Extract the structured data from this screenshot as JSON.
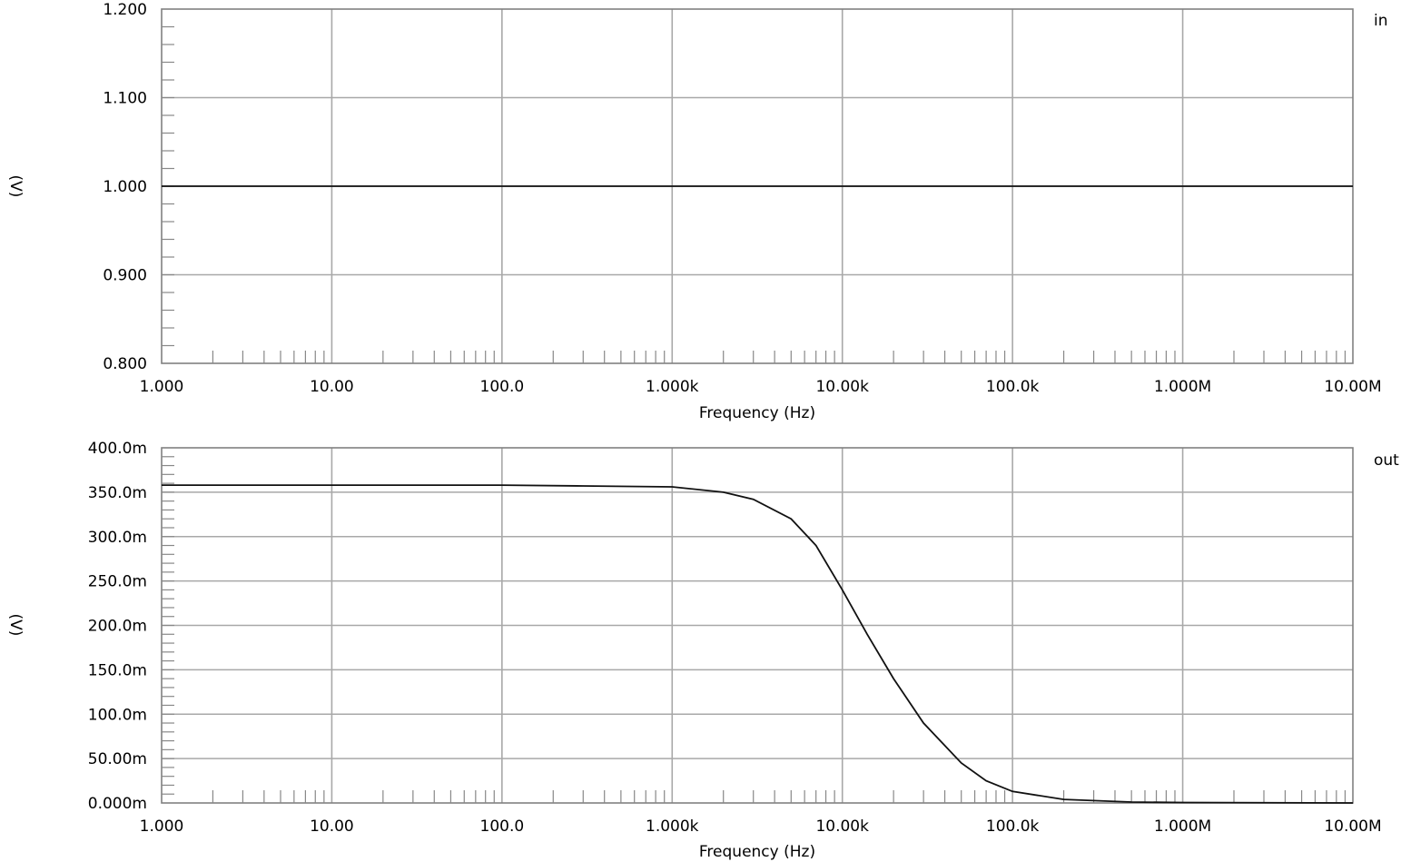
{
  "chart_data": [
    {
      "type": "line",
      "trace_label": "in",
      "xlabel": "Frequency (Hz)",
      "ylabel": "(V)",
      "x_scale": "log",
      "xlim": [
        1,
        10000000
      ],
      "ylim": [
        0.8,
        1.2
      ],
      "x_tick_labels": [
        "1.000",
        "10.00",
        "100.0",
        "1.000k",
        "10.00k",
        "100.0k",
        "1.000M",
        "10.00M"
      ],
      "y_tick_labels": [
        "0.800",
        "0.900",
        "1.000",
        "1.100",
        "1.200"
      ],
      "grid": true,
      "series": [
        {
          "name": "in",
          "x": [
            1,
            10,
            100,
            1000,
            10000,
            100000,
            1000000,
            10000000
          ],
          "y": [
            1.0,
            1.0,
            1.0,
            1.0,
            1.0,
            1.0,
            1.0,
            1.0
          ]
        }
      ]
    },
    {
      "type": "line",
      "trace_label": "out",
      "xlabel": "Frequency (Hz)",
      "ylabel": "(V)",
      "x_scale": "log",
      "xlim": [
        1,
        10000000
      ],
      "ylim": [
        0,
        0.4
      ],
      "x_tick_labels": [
        "1.000",
        "10.00",
        "100.0",
        "1.000k",
        "10.00k",
        "100.0k",
        "1.000M",
        "10.00M"
      ],
      "y_tick_labels": [
        "0.000m",
        "50.00m",
        "100.0m",
        "150.0m",
        "200.0m",
        "250.0m",
        "300.0m",
        "350.0m",
        "400.0m"
      ],
      "grid": true,
      "series": [
        {
          "name": "out",
          "x": [
            1,
            10,
            100,
            300,
            1000,
            2000,
            3000,
            5000,
            7000,
            10000,
            14000,
            20000,
            30000,
            50000,
            70000,
            100000,
            200000,
            500000,
            1000000,
            10000000
          ],
          "y": [
            0.358,
            0.358,
            0.358,
            0.357,
            0.356,
            0.35,
            0.342,
            0.32,
            0.29,
            0.24,
            0.19,
            0.14,
            0.09,
            0.045,
            0.025,
            0.013,
            0.004,
            0.001,
            0.0005,
            0.0
          ]
        }
      ]
    }
  ]
}
